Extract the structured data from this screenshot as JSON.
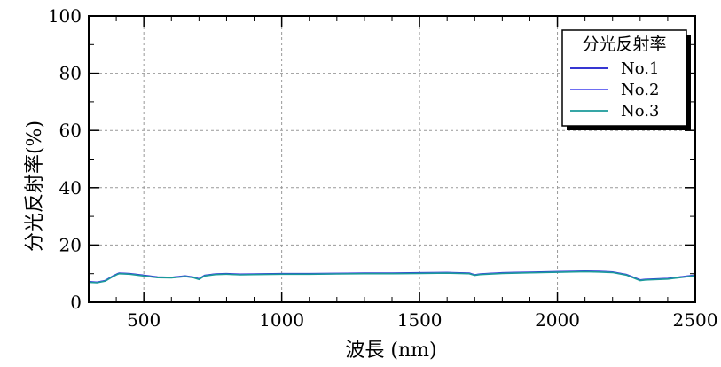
{
  "chart_data": {
    "type": "line",
    "title": "",
    "xlabel": "波長 (nm)",
    "ylabel": "分光反射率(%)",
    "xlim": [
      300,
      2500
    ],
    "ylim": [
      0,
      100
    ],
    "xticks": [
      500,
      1000,
      1500,
      2000,
      2500
    ],
    "yticks": [
      0,
      20,
      40,
      60,
      80,
      100
    ],
    "x_minor_step": 100,
    "y_minor_step": 10,
    "grid": true,
    "legend_title": "分光反射率",
    "legend_position": "top-right",
    "series": [
      {
        "name": "No.1",
        "color": "#1a1acc",
        "x": [
          300,
          330,
          360,
          390,
          410,
          450,
          500,
          550,
          600,
          650,
          680,
          700,
          720,
          760,
          800,
          850,
          900,
          1000,
          1100,
          1200,
          1300,
          1400,
          1500,
          1600,
          1680,
          1700,
          1720,
          1800,
          1900,
          2000,
          2100,
          2150,
          2200,
          2250,
          2300,
          2320,
          2400,
          2450,
          2500
        ],
        "y": [
          7.2,
          7.0,
          7.6,
          9.3,
          10.2,
          10.0,
          9.4,
          8.8,
          8.7,
          9.2,
          8.8,
          8.2,
          9.4,
          9.9,
          10.0,
          9.8,
          9.9,
          10.0,
          10.0,
          10.1,
          10.2,
          10.2,
          10.3,
          10.4,
          10.2,
          9.6,
          9.9,
          10.3,
          10.5,
          10.7,
          10.9,
          10.8,
          10.6,
          9.7,
          7.8,
          8.0,
          8.3,
          8.9,
          9.5
        ]
      },
      {
        "name": "No.2",
        "color": "#5a5af0",
        "x": [
          300,
          330,
          360,
          390,
          410,
          450,
          500,
          550,
          600,
          650,
          680,
          700,
          720,
          760,
          800,
          850,
          900,
          1000,
          1100,
          1200,
          1300,
          1400,
          1500,
          1600,
          1680,
          1700,
          1720,
          1800,
          1900,
          2000,
          2100,
          2150,
          2200,
          2250,
          2300,
          2320,
          2400,
          2450,
          2500
        ],
        "y": [
          7.1,
          6.9,
          7.5,
          9.2,
          10.1,
          9.9,
          9.3,
          8.7,
          8.6,
          9.1,
          8.7,
          8.1,
          9.3,
          9.8,
          9.9,
          9.7,
          9.8,
          9.9,
          9.9,
          10.0,
          10.1,
          10.1,
          10.2,
          10.3,
          10.1,
          9.5,
          9.8,
          10.2,
          10.4,
          10.6,
          10.8,
          10.7,
          10.5,
          9.6,
          7.7,
          7.9,
          8.2,
          8.8,
          9.4
        ]
      },
      {
        "name": "No.3",
        "color": "#1a9a9a",
        "x": [
          300,
          330,
          360,
          390,
          410,
          450,
          500,
          550,
          600,
          650,
          680,
          700,
          720,
          760,
          800,
          850,
          900,
          1000,
          1100,
          1200,
          1300,
          1400,
          1500,
          1600,
          1680,
          1700,
          1720,
          1800,
          1900,
          2000,
          2100,
          2150,
          2200,
          2250,
          2300,
          2320,
          2400,
          2450,
          2500
        ],
        "y": [
          7.0,
          6.8,
          7.4,
          9.1,
          10.0,
          9.8,
          9.2,
          8.6,
          8.5,
          9.0,
          8.6,
          8.0,
          9.2,
          9.7,
          9.8,
          9.6,
          9.7,
          9.8,
          9.8,
          9.9,
          10.0,
          10.0,
          10.1,
          10.2,
          10.0,
          9.4,
          9.7,
          10.1,
          10.3,
          10.5,
          10.7,
          10.6,
          10.4,
          9.5,
          7.6,
          7.8,
          8.1,
          8.7,
          9.3
        ]
      }
    ]
  }
}
